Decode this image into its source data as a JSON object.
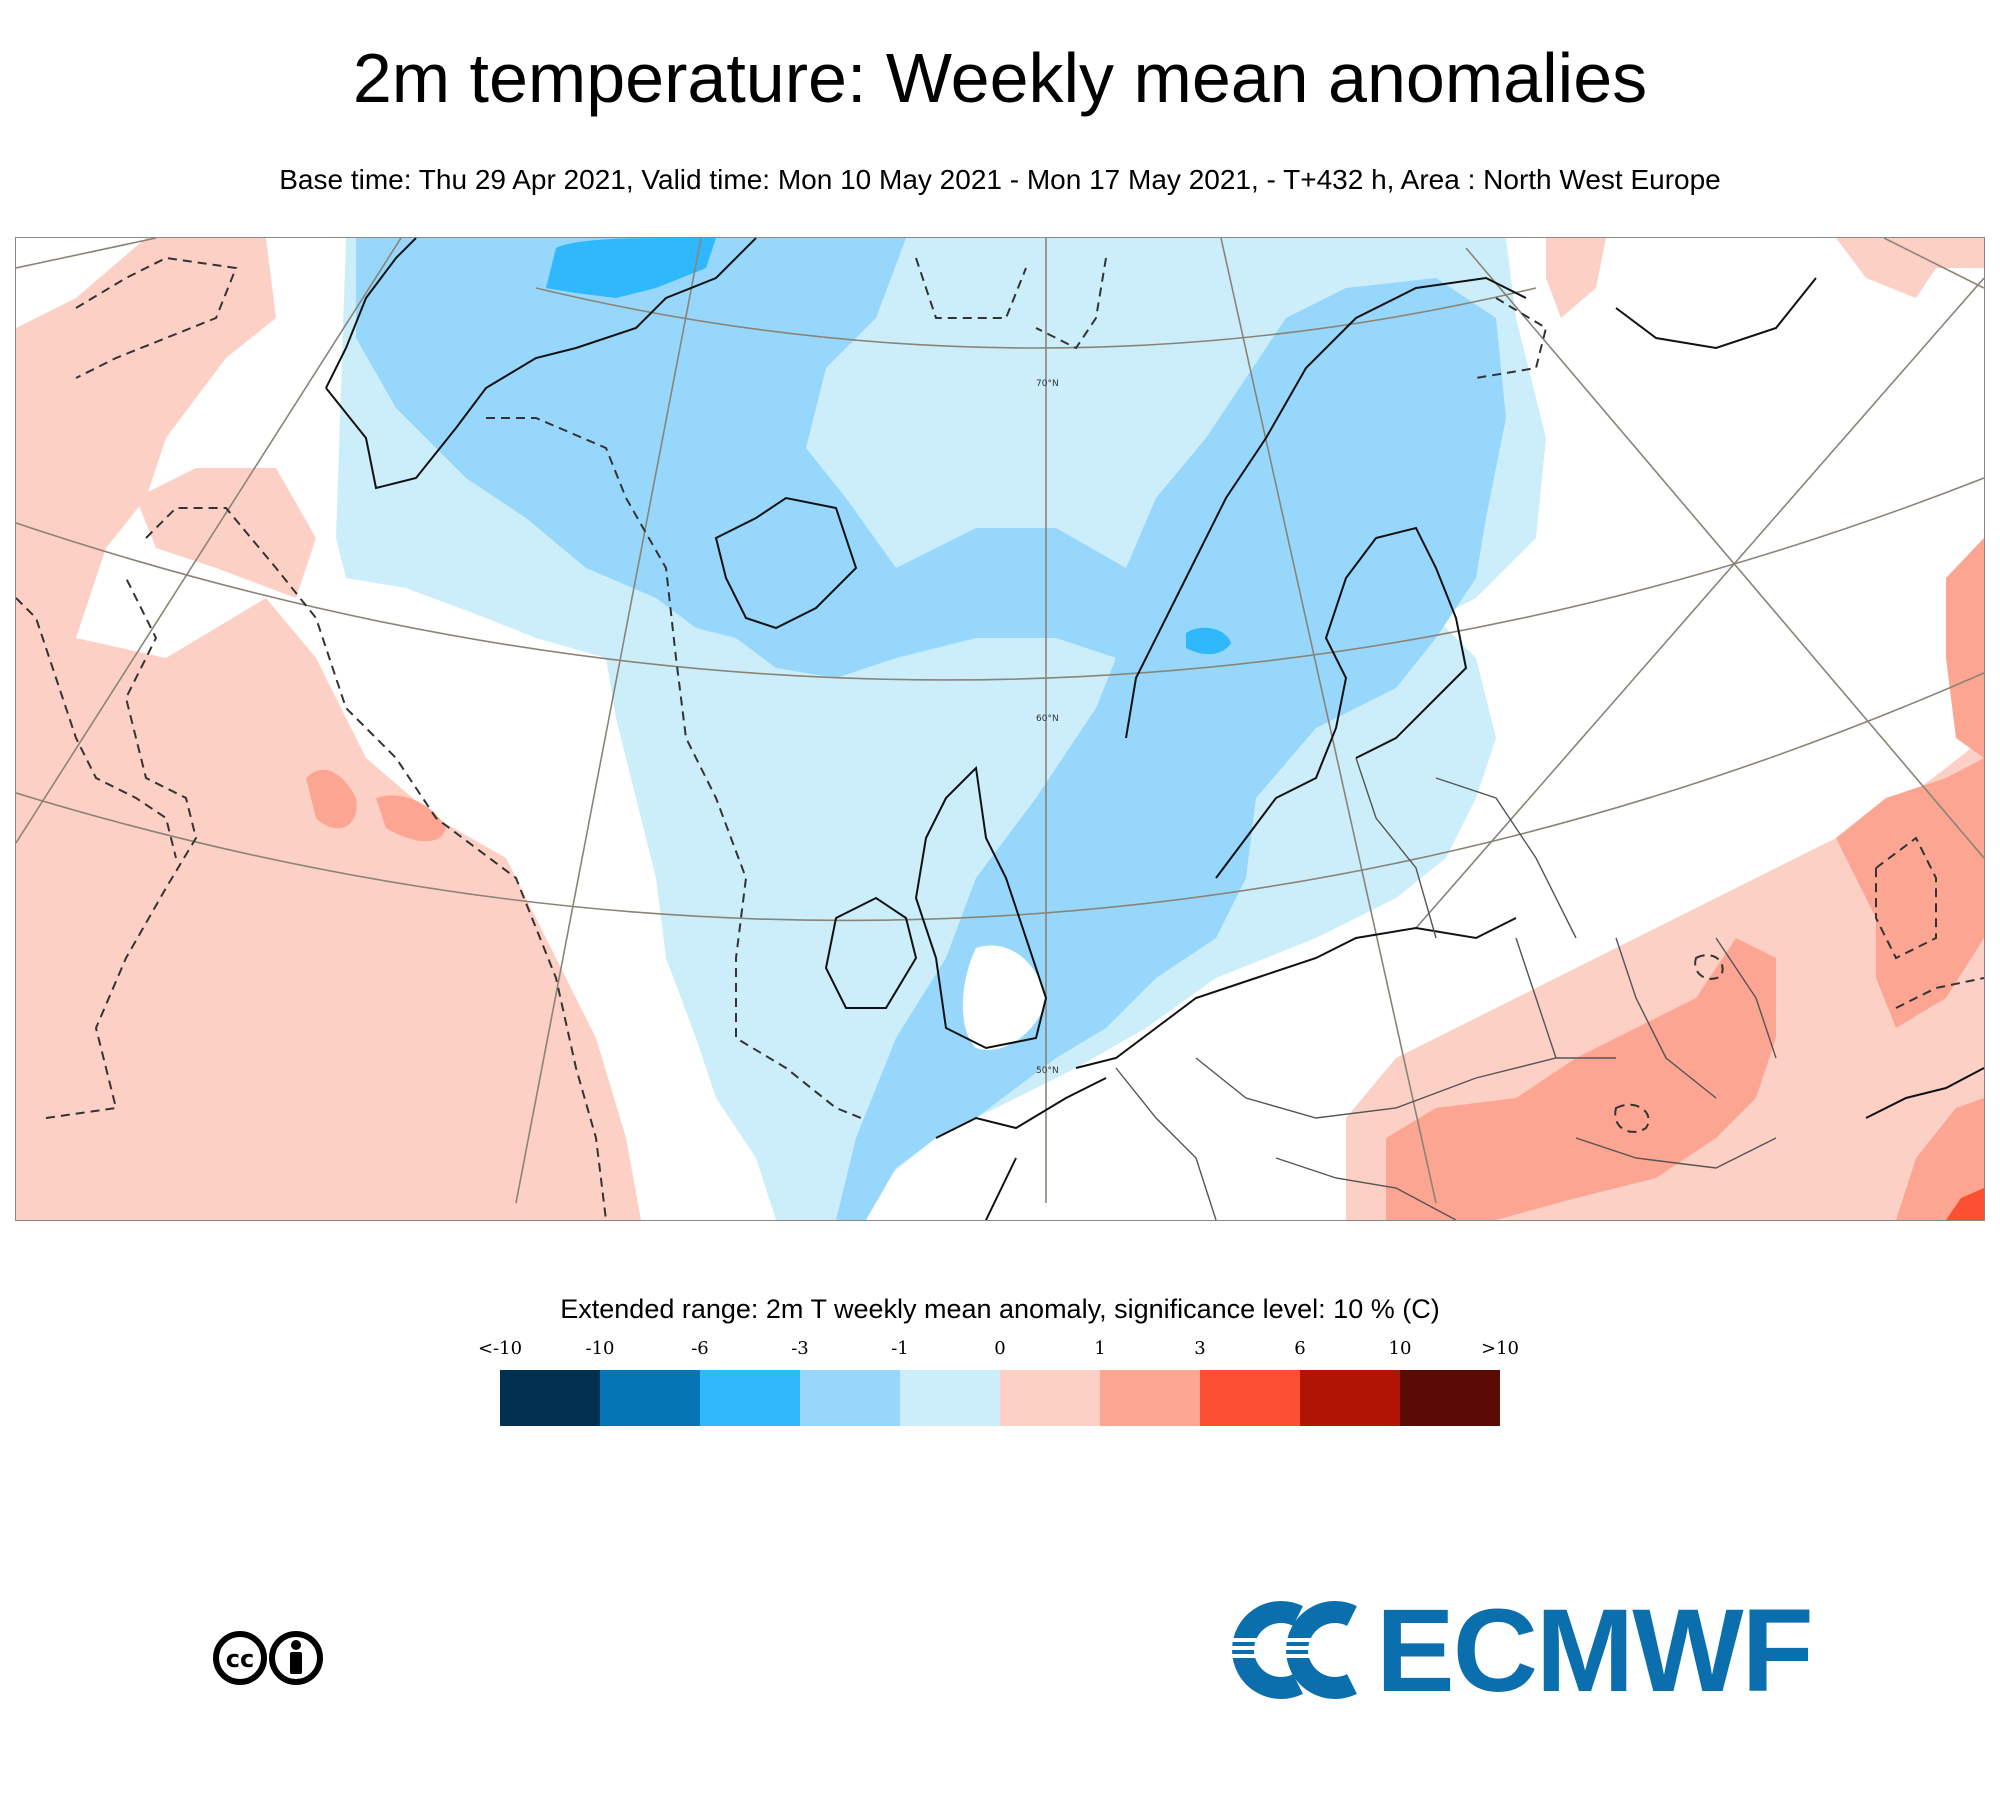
{
  "title": "2m temperature: Weekly mean anomalies",
  "subtitle": "Base time: Thu 29 Apr 2021, Valid time: Mon 10 May 2021 - Mon 17 May 2021, - T+432 h, Area : North West Europe",
  "map": {
    "lat_labels": [
      "70°N",
      "60°N",
      "50°N"
    ]
  },
  "legend": {
    "title": "Extended range: 2m T weekly mean anomaly, significance level: 10 % (C)",
    "ticks": [
      "<-10",
      "-10",
      "-6",
      "-3",
      "-1",
      "0",
      "1",
      "3",
      "6",
      "10",
      ">10"
    ],
    "colors": [
      "#013050",
      "#0675b5",
      "#2fb8fb",
      "#97d7fc",
      "#cceefb",
      "#fdd0c6",
      "#fba592",
      "#fd4f31",
      "#b01504",
      "#5a0b03"
    ]
  },
  "footer": {
    "license_icon": "cc-by-icon",
    "logo_text": "ECMWF",
    "logo_color": "#0b6fae"
  }
}
